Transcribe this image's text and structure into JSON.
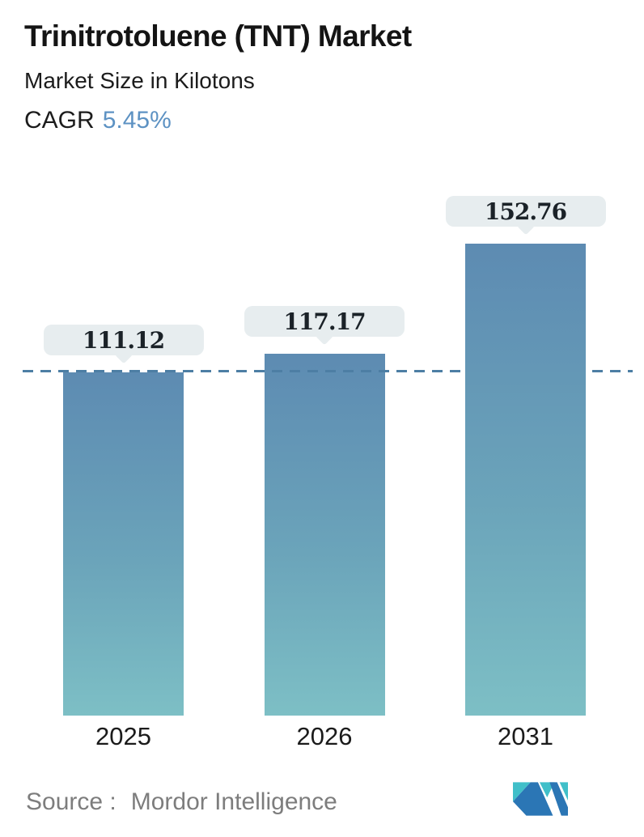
{
  "header": {
    "title": "Trinitrotoluene (TNT) Market",
    "subtitle": "Market Size in Kilotons",
    "cagr_label": "CAGR",
    "cagr_value": "5.45%"
  },
  "chart_data": {
    "type": "bar",
    "title": "Trinitrotoluene (TNT) Market",
    "subtitle": "Market Size in Kilotons",
    "unit": "Kilotons",
    "categories": [
      "2025",
      "2026",
      "2031"
    ],
    "values": [
      111.12,
      117.17,
      152.76
    ],
    "value_labels": [
      "111.12",
      "117.17",
      "152.76"
    ],
    "cagr_percent": 5.45,
    "reference_line": {
      "value": 111.12,
      "style": "dashed"
    },
    "ylim": [
      0,
      160
    ],
    "grid": false,
    "legend": false,
    "colors": {
      "bar_gradient_top": "#5d8bb2",
      "bar_gradient_bottom": "#7dbfc5",
      "dashed_line": "#4d7ea4",
      "callout_background": "#e7edef",
      "cagr_accent": "#5d92c3",
      "text": "#1b1b1b",
      "source_text": "#7d7d7d",
      "logo_blue": "#2b76b5",
      "logo_teal": "#40bfc9"
    }
  },
  "footer": {
    "source_label": "Source :",
    "source_value": "Mordor Intelligence",
    "logo": "mordor-intelligence-logo"
  }
}
